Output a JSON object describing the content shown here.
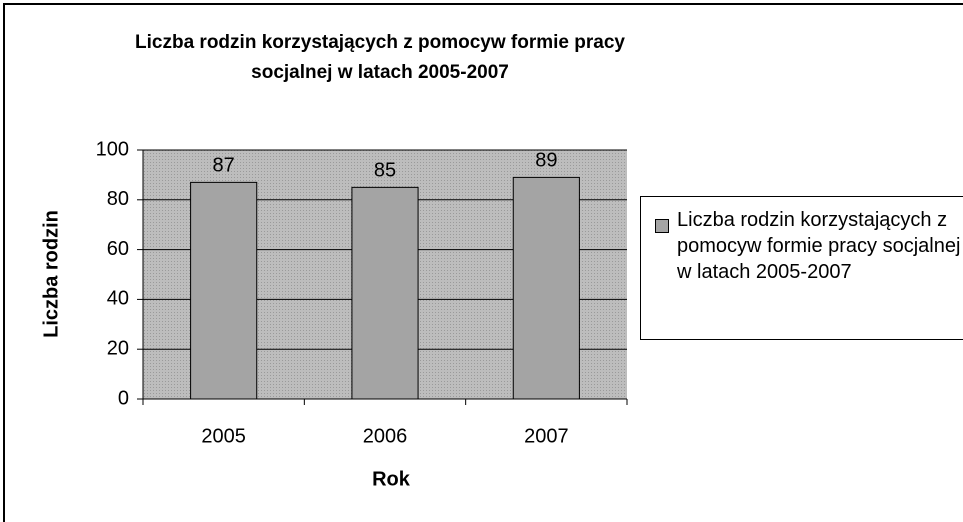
{
  "chart_data": {
    "type": "bar",
    "title": "Liczba rodzin korzystających z pomocyw formie pracy socjalnej w latach 2005-2007",
    "xlabel": "Rok",
    "ylabel": "Liczba rodzin",
    "categories": [
      "2005",
      "2006",
      "2007"
    ],
    "series": [
      {
        "name": "Liczba rodzin korzystających z pomocyw formie pracy socjalnej w latach 2005-2007",
        "color": "#a4a4a4",
        "values": [
          87,
          85,
          89
        ]
      }
    ],
    "ylim": [
      0,
      100
    ],
    "yticks": [
      0,
      20,
      40,
      60,
      80,
      100
    ],
    "grid": true,
    "legend": "right"
  }
}
